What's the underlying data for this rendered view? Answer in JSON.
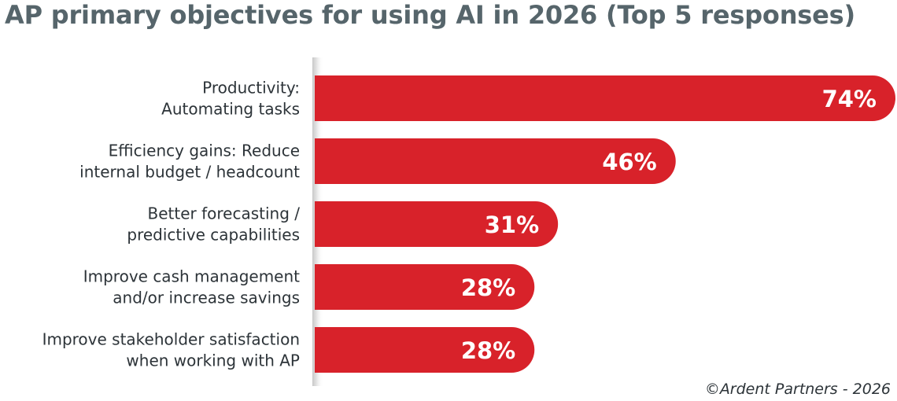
{
  "title": "AP primary objectives for using AI in 2026 (Top 5 responses)",
  "footer": "©Ardent Partners - 2026",
  "colors": {
    "bar": "#d8222a",
    "title": "#56656b",
    "text": "#2c3338",
    "axis": "#cfcfcf"
  },
  "chart_data": {
    "type": "bar",
    "orientation": "horizontal",
    "title": "AP primary objectives for using AI in 2026 (Top 5 responses)",
    "categories": [
      [
        "Productivity:",
        "Automating tasks"
      ],
      [
        "Efficiency gains: Reduce",
        "internal budget / headcount"
      ],
      [
        "Better forecasting /",
        "predictive capabilities"
      ],
      [
        "Improve cash management",
        "and/or increase savings"
      ],
      [
        "Improve stakeholder satisfaction",
        "when working with AP"
      ]
    ],
    "values": [
      74,
      46,
      31,
      28,
      28
    ],
    "value_labels": [
      "74%",
      "46%",
      "31%",
      "28%",
      "28%"
    ],
    "unit": "%",
    "xlim": [
      0,
      74
    ],
    "grid": false,
    "legend": "none"
  }
}
